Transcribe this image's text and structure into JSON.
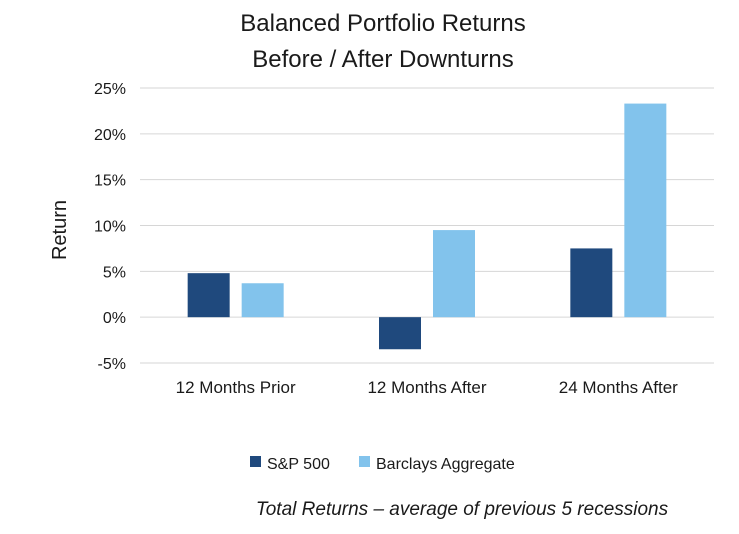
{
  "chart_data": {
    "type": "bar",
    "title": [
      "Balanced Portfolio Returns",
      "Before / After Downturns"
    ],
    "xlabel": "",
    "ylabel": "Return",
    "categories": [
      "12 Months Prior",
      "12 Months After",
      "24 Months After"
    ],
    "series": [
      {
        "name": "S&P 500",
        "color": "#1f497d",
        "values": [
          4.8,
          -3.5,
          7.5
        ]
      },
      {
        "name": "Barclays Aggregate",
        "color": "#82c3ec",
        "values": [
          3.7,
          9.5,
          23.3
        ]
      }
    ],
    "ylim": [
      -5,
      25
    ],
    "yticks": [
      -5,
      0,
      5,
      10,
      15,
      20,
      25
    ],
    "ytick_labels": [
      "-5%",
      "0%",
      "5%",
      "10%",
      "15%",
      "20%",
      "25%"
    ],
    "grid": true,
    "legend_position": "bottom",
    "footnote": "Total Returns – average of previous 5 recessions"
  }
}
